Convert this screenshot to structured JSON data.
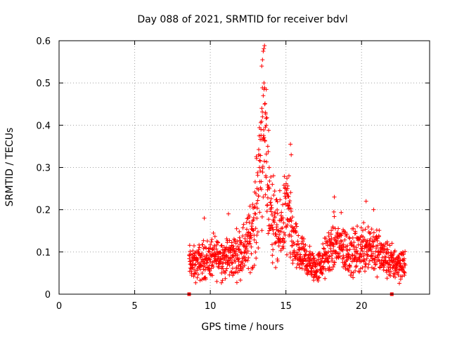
{
  "chart_data": {
    "type": "scatter",
    "title": "Day 088 of 2021, SRMTID for receiver bdvl",
    "xlabel": "GPS time / hours",
    "ylabel": "SRMTID / TECUs",
    "xlim": [
      0,
      24.5
    ],
    "ylim": [
      0,
      0.6
    ],
    "xticks": [
      0,
      5,
      10,
      15,
      20
    ],
    "yticks": [
      0,
      0.1,
      0.2,
      0.3,
      0.4,
      0.5,
      0.6
    ],
    "xtick_labels": [
      "0",
      "5",
      "10",
      "15",
      "20"
    ],
    "ytick_labels": [
      "0",
      "0.1",
      "0.2",
      "0.3",
      "0.4",
      "0.5",
      "0.6"
    ],
    "grid": true,
    "marker": "+",
    "color": "#ff0000",
    "series": [
      {
        "name": "SRMTID",
        "data_range_x": [
          8.6,
          22.9
        ],
        "profile": [
          [
            8.6,
            0.075
          ],
          [
            9.0,
            0.07
          ],
          [
            9.5,
            0.08
          ],
          [
            10.0,
            0.085
          ],
          [
            10.5,
            0.09
          ],
          [
            11.0,
            0.085
          ],
          [
            11.5,
            0.09
          ],
          [
            12.0,
            0.1
          ],
          [
            12.5,
            0.12
          ],
          [
            13.0,
            0.18
          ],
          [
            13.3,
            0.32
          ],
          [
            13.5,
            0.4
          ],
          [
            13.7,
            0.3
          ],
          [
            14.0,
            0.2
          ],
          [
            14.5,
            0.13
          ],
          [
            15.0,
            0.2
          ],
          [
            15.3,
            0.15
          ],
          [
            15.7,
            0.1
          ],
          [
            16.0,
            0.09
          ],
          [
            16.5,
            0.075
          ],
          [
            17.0,
            0.06
          ],
          [
            17.5,
            0.08
          ],
          [
            18.0,
            0.11
          ],
          [
            18.5,
            0.12
          ],
          [
            19.0,
            0.1
          ],
          [
            19.5,
            0.095
          ],
          [
            20.0,
            0.11
          ],
          [
            20.5,
            0.12
          ],
          [
            21.0,
            0.1
          ],
          [
            21.5,
            0.085
          ],
          [
            22.0,
            0.075
          ],
          [
            22.9,
            0.07
          ]
        ],
        "peaks": [
          [
            13.5,
            0.575
          ],
          [
            13.45,
            0.555
          ],
          [
            13.4,
            0.54
          ],
          [
            13.55,
            0.5
          ],
          [
            13.5,
            0.47
          ],
          [
            13.6,
            0.45
          ],
          [
            13.65,
            0.43
          ],
          [
            13.45,
            0.42
          ],
          [
            13.7,
            0.4
          ],
          [
            13.35,
            0.39
          ],
          [
            13.8,
            0.35
          ],
          [
            15.3,
            0.355
          ],
          [
            15.35,
            0.33
          ],
          [
            15.2,
            0.28
          ],
          [
            15.1,
            0.25
          ],
          [
            13.2,
            0.33
          ],
          [
            13.25,
            0.3
          ],
          [
            14.1,
            0.26
          ],
          [
            18.2,
            0.23
          ],
          [
            20.3,
            0.22
          ],
          [
            20.8,
            0.2
          ],
          [
            9.6,
            0.18
          ],
          [
            11.2,
            0.19
          ],
          [
            12.5,
            0.18
          ]
        ]
      }
    ],
    "bottom_markers_x": [
      8.6,
      22.0
    ]
  }
}
